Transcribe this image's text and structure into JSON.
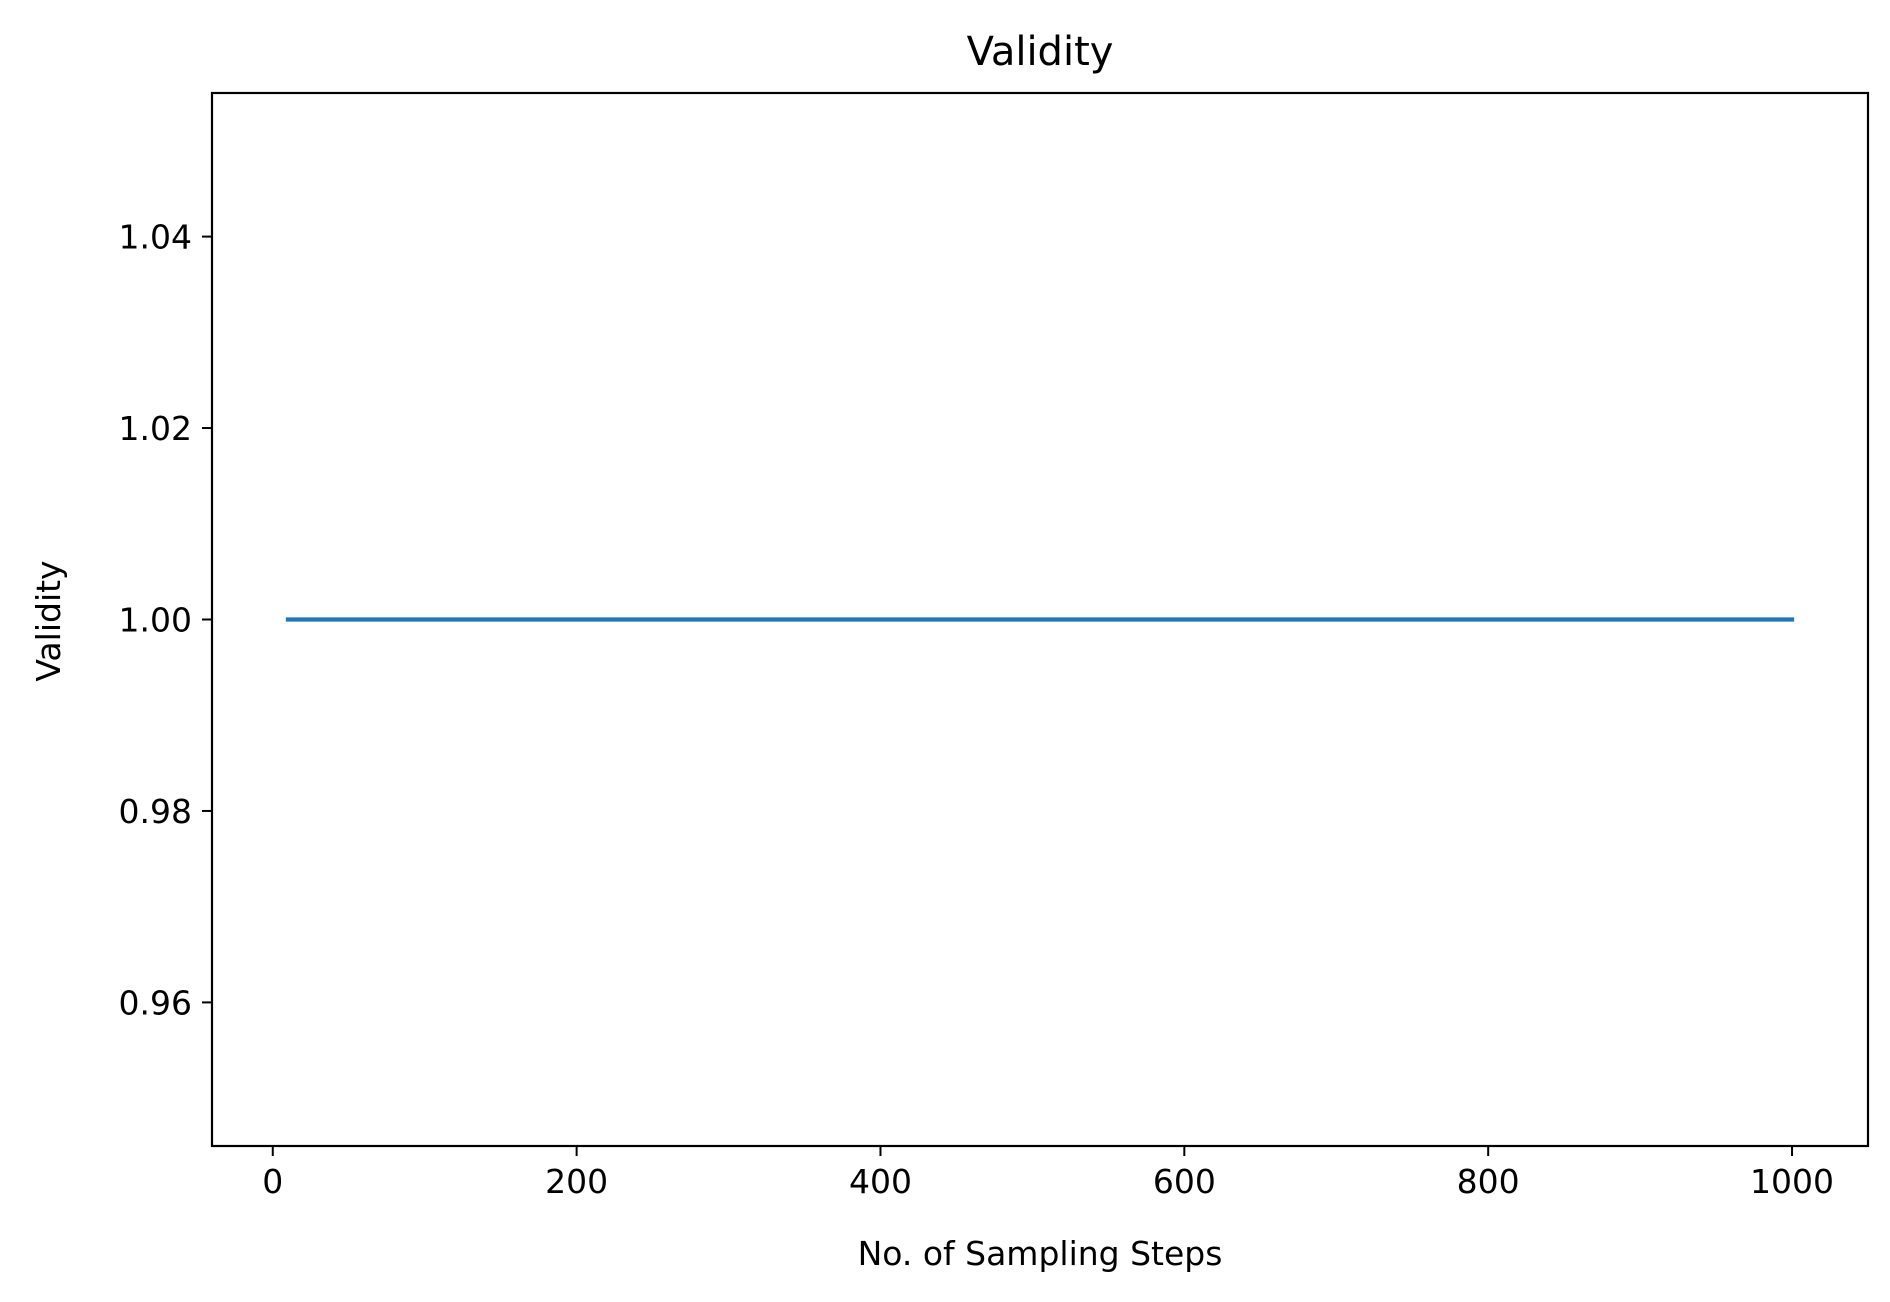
{
  "chart_data": {
    "type": "line",
    "title": "Validity",
    "xlabel": "No. of Sampling Steps",
    "ylabel": "Validity",
    "xlim": [
      -40,
      1050
    ],
    "ylim": [
      0.945,
      1.055
    ],
    "xticks": [
      0,
      200,
      400,
      600,
      800,
      1000
    ],
    "xtick_labels": [
      "0",
      "200",
      "400",
      "600",
      "800",
      "1000"
    ],
    "yticks": [
      0.96,
      0.98,
      1.0,
      1.02,
      1.04
    ],
    "ytick_labels": [
      "0.96",
      "0.98",
      "1.00",
      "1.02",
      "1.04"
    ],
    "grid": false,
    "series": [
      {
        "color": "#1f77b4",
        "x": [
          10,
          1000
        ],
        "y": [
          1.0,
          1.0
        ]
      }
    ]
  }
}
